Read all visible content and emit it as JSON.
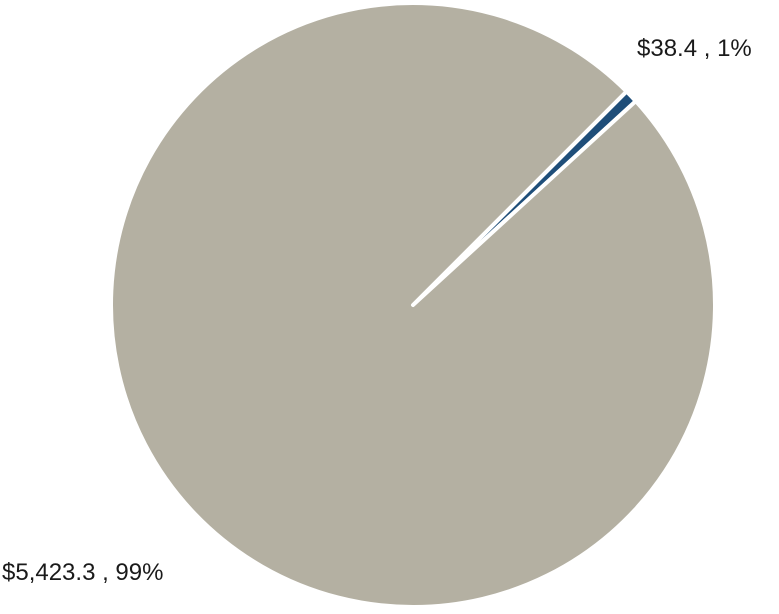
{
  "chart_data": {
    "type": "pie",
    "title": "",
    "slices": [
      {
        "value": 38.4,
        "percent": 1,
        "label": "$38.4 , 1%",
        "color": "#1f4e79"
      },
      {
        "value": 5423.3,
        "percent": 99,
        "label": "$5,423.3 , 99%",
        "color": "#b4b0a2"
      }
    ],
    "legend": "none",
    "separator_color": "#ffffff"
  }
}
